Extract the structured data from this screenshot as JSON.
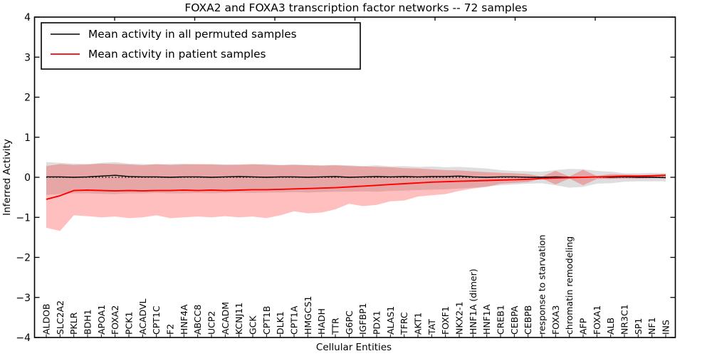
{
  "chart_data": {
    "type": "line",
    "title": "FOXA2 and FOXA3 transcription factor networks -- 72 samples",
    "xlabel": "Cellular Entities",
    "ylabel": "Inferred Activity",
    "ylim": [
      -4,
      4
    ],
    "yticks": [
      4,
      3,
      2,
      1,
      0,
      -1,
      -2,
      -3,
      -4
    ],
    "grid": false,
    "legend_position": "upper left",
    "zero_line": {
      "style": "dotted",
      "color": "#000000",
      "y": 0
    },
    "categories": [
      "ALDOB",
      "SLC2A2",
      "PKLR",
      "BDH1",
      "APOA1",
      "FOXA2",
      "PCK1",
      "ACADVL",
      "CPT1C",
      "F2",
      "HNF4A",
      "ABCC8",
      "UCP2",
      "ACADM",
      "KCNJ11",
      "GCK",
      "CPT1B",
      "DLK1",
      "CPT1A",
      "HMGCS1",
      "HADH",
      "TTR",
      "G6PC",
      "IGFBP1",
      "PDX1",
      "ALAS1",
      "TFRC",
      "AKT1",
      "TAT",
      "FOXF1",
      "NKX2-1",
      "HNF1A (dimer)",
      "HNF1A",
      "CREB1",
      "CEBPA",
      "CEBPB",
      "response to starvation",
      "FOXA3",
      "chromatin remodeling",
      "AFP",
      "FOXA1",
      "ALB",
      "NR3C1",
      "SP1",
      "NF1",
      "INS"
    ],
    "series": [
      {
        "name": "Mean activity in all permuted samples",
        "color": "#000000",
        "fill": "rgba(0,0,0,0.13)",
        "values": [
          0.01,
          0.01,
          0.0,
          0.01,
          0.03,
          0.05,
          0.02,
          0.01,
          0.01,
          0.0,
          0.01,
          0.01,
          0.0,
          0.01,
          0.02,
          0.01,
          0.0,
          0.01,
          0.01,
          0.0,
          0.01,
          0.02,
          0.0,
          0.01,
          0.02,
          0.01,
          0.02,
          0.01,
          0.02,
          0.02,
          0.03,
          0.01,
          0.0,
          0.01,
          0.01,
          0.0,
          0.0,
          0.01,
          0.0,
          0.0,
          0.01,
          0.0,
          0.01,
          0.0,
          0.0,
          -0.01
        ],
        "band_upper": [
          0.38,
          0.36,
          0.34,
          0.33,
          0.36,
          0.38,
          0.34,
          0.33,
          0.32,
          0.33,
          0.34,
          0.32,
          0.33,
          0.32,
          0.31,
          0.32,
          0.33,
          0.31,
          0.32,
          0.31,
          0.3,
          0.31,
          0.3,
          0.28,
          0.3,
          0.27,
          0.28,
          0.26,
          0.27,
          0.25,
          0.26,
          0.24,
          0.22,
          0.18,
          0.16,
          0.15,
          0.14,
          0.18,
          0.21,
          0.2,
          0.16,
          0.14,
          0.1,
          0.1,
          0.11,
          0.1
        ],
        "band_lower": [
          -0.44,
          -0.42,
          -0.4,
          -0.4,
          -0.41,
          -0.42,
          -0.4,
          -0.4,
          -0.39,
          -0.4,
          -0.4,
          -0.39,
          -0.4,
          -0.39,
          -0.38,
          -0.39,
          -0.38,
          -0.38,
          -0.37,
          -0.38,
          -0.37,
          -0.36,
          -0.36,
          -0.35,
          -0.36,
          -0.34,
          -0.33,
          -0.32,
          -0.31,
          -0.3,
          -0.28,
          -0.26,
          -0.23,
          -0.2,
          -0.18,
          -0.16,
          -0.15,
          -0.2,
          -0.26,
          -0.24,
          -0.16,
          -0.15,
          -0.11,
          -0.1,
          -0.1,
          -0.1
        ]
      },
      {
        "name": "Mean activity in patient samples",
        "color": "#ff0000",
        "fill": "rgba(255,0,0,0.25)",
        "values": [
          -0.55,
          -0.46,
          -0.33,
          -0.32,
          -0.33,
          -0.34,
          -0.33,
          -0.34,
          -0.33,
          -0.33,
          -0.32,
          -0.33,
          -0.32,
          -0.33,
          -0.32,
          -0.31,
          -0.31,
          -0.3,
          -0.29,
          -0.28,
          -0.27,
          -0.26,
          -0.24,
          -0.22,
          -0.2,
          -0.18,
          -0.16,
          -0.14,
          -0.12,
          -0.11,
          -0.1,
          -0.09,
          -0.08,
          -0.07,
          -0.06,
          -0.05,
          -0.03,
          -0.02,
          -0.01,
          0.0,
          0.01,
          0.02,
          0.03,
          0.03,
          0.04,
          0.05
        ],
        "band_upper": [
          0.28,
          0.33,
          0.31,
          0.32,
          0.34,
          0.33,
          0.32,
          0.3,
          0.33,
          0.31,
          0.32,
          0.33,
          0.32,
          0.31,
          0.32,
          0.33,
          0.31,
          0.3,
          0.31,
          0.3,
          0.29,
          0.3,
          0.28,
          0.27,
          0.26,
          0.25,
          0.23,
          0.22,
          0.2,
          0.18,
          0.17,
          0.15,
          0.13,
          0.11,
          0.1,
          0.08,
          0.02,
          0.16,
          0.02,
          0.19,
          0.03,
          0.08,
          0.07,
          0.06,
          0.06,
          0.08
        ],
        "band_lower": [
          -1.26,
          -1.34,
          -0.95,
          -0.97,
          -1.0,
          -0.98,
          -1.02,
          -1.0,
          -0.95,
          -1.02,
          -1.0,
          -0.98,
          -1.0,
          -0.97,
          -1.0,
          -0.98,
          -1.02,
          -0.95,
          -0.85,
          -0.9,
          -0.88,
          -0.8,
          -0.66,
          -0.72,
          -0.69,
          -0.6,
          -0.58,
          -0.48,
          -0.45,
          -0.42,
          -0.34,
          -0.28,
          -0.24,
          -0.16,
          -0.14,
          -0.12,
          -0.03,
          -0.18,
          -0.03,
          -0.2,
          -0.04,
          -0.04,
          -0.03,
          -0.03,
          -0.02,
          -0.01
        ]
      }
    ]
  },
  "legend": {
    "items": [
      {
        "label": "Mean activity in all permuted samples",
        "color": "#000000"
      },
      {
        "label": "Mean activity in patient samples",
        "color": "#ff0000"
      }
    ]
  }
}
